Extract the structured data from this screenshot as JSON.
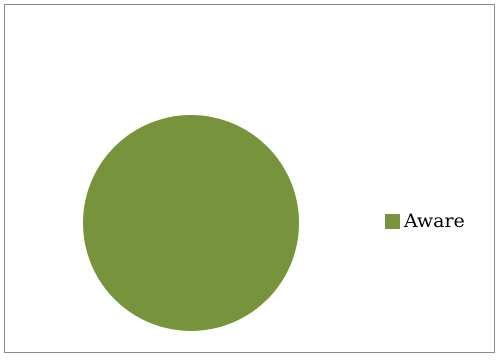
{
  "chart_data": {
    "type": "pie",
    "categories": [
      "Aware"
    ],
    "values": [
      100
    ],
    "colors": [
      "#77933c"
    ],
    "legend_position": "right",
    "title": ""
  }
}
